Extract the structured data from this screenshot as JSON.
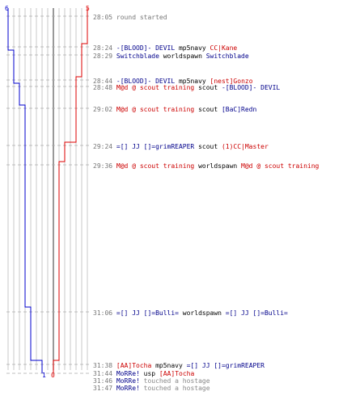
{
  "colors": {
    "blue_team": "#0000cc",
    "red_team": "#dd0000",
    "blue_text": "#00008b",
    "red_text": "#cc0000",
    "grid": "#bbbbbb",
    "time": "#777777"
  },
  "scoreboard": {
    "blue_final": "6",
    "red_final": "5",
    "blue_start": "1",
    "red_start": "0"
  },
  "events": [
    {
      "time": "28:05",
      "parts": [
        {
          "t": "round started",
          "c": "sys"
        }
      ]
    },
    {
      "time": "28:24",
      "parts": [
        {
          "t": "-[BLOOD]- DEVIL",
          "c": "b"
        },
        {
          "t": " mp5navy ",
          "c": "k"
        },
        {
          "t": "CC|Kane",
          "c": "r"
        }
      ]
    },
    {
      "time": "28:29",
      "parts": [
        {
          "t": "Switchblade",
          "c": "b"
        },
        {
          "t": " worldspawn ",
          "c": "k"
        },
        {
          "t": "Switchblade",
          "c": "b"
        }
      ]
    },
    {
      "time": "28:44",
      "parts": [
        {
          "t": "-[BLOOD]- DEVIL",
          "c": "b"
        },
        {
          "t": " mp5navy ",
          "c": "k"
        },
        {
          "t": "[nest]Gonzo",
          "c": "r"
        }
      ]
    },
    {
      "time": "28:48",
      "parts": [
        {
          "t": "M@d @ scout training",
          "c": "r"
        },
        {
          "t": " scout ",
          "c": "k"
        },
        {
          "t": "-[BLOOD]- DEVIL",
          "c": "b"
        }
      ]
    },
    {
      "time": "29:02",
      "parts": [
        {
          "t": "M@d @ scout training",
          "c": "r"
        },
        {
          "t": " scout ",
          "c": "k"
        },
        {
          "t": "[BaC]Redn",
          "c": "b"
        }
      ]
    },
    {
      "time": "29:24",
      "parts": [
        {
          "t": "=[] JJ []=grimREAPER",
          "c": "b"
        },
        {
          "t": " scout ",
          "c": "k"
        },
        {
          "t": "(1)CC|Master",
          "c": "r"
        }
      ]
    },
    {
      "time": "29:36",
      "parts": [
        {
          "t": "M@d @ scout training",
          "c": "r"
        },
        {
          "t": " worldspawn ",
          "c": "k"
        },
        {
          "t": "M@d @ scout training",
          "c": "r"
        }
      ]
    },
    {
      "time": "31:06",
      "parts": [
        {
          "t": "=[] JJ []=Bulli=",
          "c": "b"
        },
        {
          "t": " worldspawn ",
          "c": "k"
        },
        {
          "t": "=[] JJ []=Bulli=",
          "c": "b"
        }
      ]
    },
    {
      "time": "31:38",
      "parts": [
        {
          "t": "[AA]Tocha",
          "c": "r"
        },
        {
          "t": " mp5navy ",
          "c": "k"
        },
        {
          "t": "=[] JJ []=grimREAPER",
          "c": "b"
        }
      ]
    },
    {
      "time": "31:44",
      "parts": [
        {
          "t": "MoRRe!",
          "c": "b"
        },
        {
          "t": " usp ",
          "c": "k"
        },
        {
          "t": "[AA]Tocha",
          "c": "r"
        }
      ]
    },
    {
      "time": "31:46",
      "parts": [
        {
          "t": "MoRRe!",
          "c": "b"
        },
        {
          "t": " touched a hostage",
          "c": "g"
        }
      ]
    },
    {
      "time": "31:47",
      "parts": [
        {
          "t": "MoRRe!",
          "c": "b"
        },
        {
          "t": " touched a hostage",
          "c": "g"
        }
      ]
    }
  ]
}
